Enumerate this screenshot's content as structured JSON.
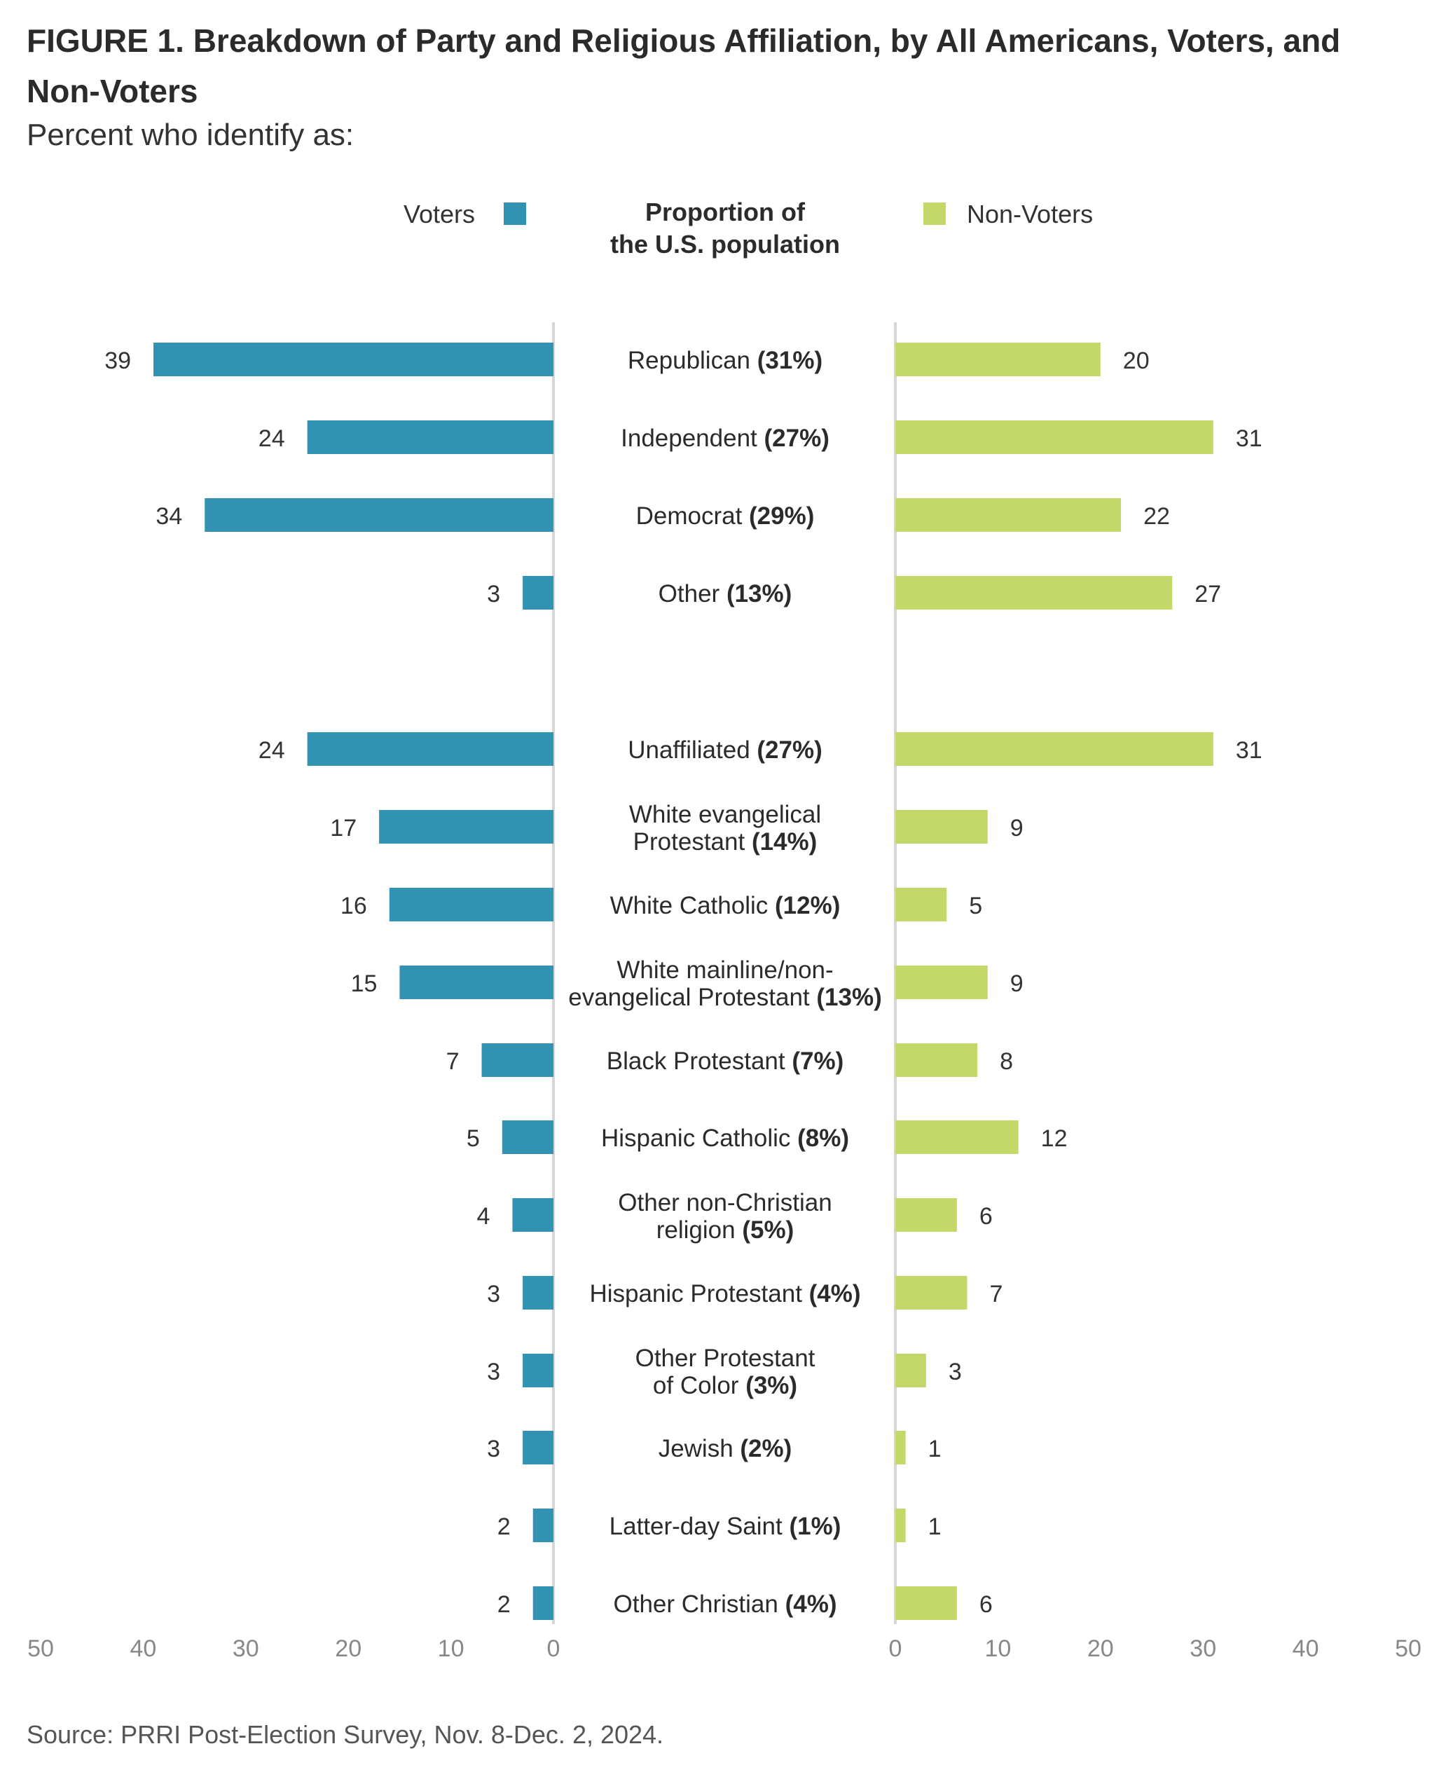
{
  "figure": {
    "title": "FIGURE 1.  Breakdown of Party and Religious Affiliation, by All Americans, Voters, and Non-Voters",
    "subtitle": "Percent who identify as:",
    "source": "Source: PRRI Post-Election Survey, Nov. 8-Dec. 2, 2024."
  },
  "legend": {
    "voters": "Voters",
    "non_voters": "Non-Voters",
    "center_header_line1": "Proportion of",
    "center_header_line2": "the U.S. population"
  },
  "colors": {
    "voters": "#3192b2",
    "non_voters": "#c2d96a",
    "axis": "#d6d6d6",
    "tick_text": "#888888"
  },
  "chart_data": {
    "type": "bar",
    "orientation": "horizontal-butterfly",
    "categories": [
      {
        "label": "Republican",
        "pct": "(31%)"
      },
      {
        "label": "Independent",
        "pct": "(27%)"
      },
      {
        "label": "Democrat",
        "pct": "(29%)"
      },
      {
        "label": "Other",
        "pct": "(13%)"
      },
      {
        "label": "Unaffiliated",
        "pct": "(27%)"
      },
      {
        "label": "White evangelical",
        "label2": "Protestant",
        "pct": "(14%)"
      },
      {
        "label": "White Catholic",
        "pct": "(12%)"
      },
      {
        "label": "White mainline/non-",
        "label2": "evangelical Protestant",
        "pct": "(13%)"
      },
      {
        "label": "Black Protestant",
        "pct": "(7%)"
      },
      {
        "label": "Hispanic Catholic",
        "pct": "(8%)"
      },
      {
        "label": "Other non-Christian",
        "label2": "religion",
        "pct": "(5%)"
      },
      {
        "label": "Hispanic Protestant",
        "pct": "(4%)"
      },
      {
        "label": "Other Protestant",
        "label2": "of Color",
        "pct": "(3%)"
      },
      {
        "label": "Jewish",
        "pct": "(2%)"
      },
      {
        "label": "Latter-day Saint",
        "pct": "(1%)"
      },
      {
        "label": "Other Christian",
        "pct": "(4%)"
      }
    ],
    "series": [
      {
        "name": "Voters",
        "values": [
          39,
          24,
          34,
          3,
          24,
          17,
          16,
          15,
          7,
          5,
          4,
          3,
          3,
          3,
          2,
          2
        ]
      },
      {
        "name": "Non-Voters",
        "values": [
          20,
          31,
          22,
          27,
          31,
          9,
          5,
          9,
          8,
          12,
          6,
          7,
          3,
          1,
          1,
          6
        ]
      }
    ],
    "xlim": [
      0,
      50
    ],
    "ticks": [
      "50",
      "40",
      "30",
      "20",
      "10",
      "0"
    ],
    "ticks_right": [
      "0",
      "10",
      "20",
      "30",
      "40",
      "50"
    ],
    "grid": false,
    "legend_position": "top"
  }
}
